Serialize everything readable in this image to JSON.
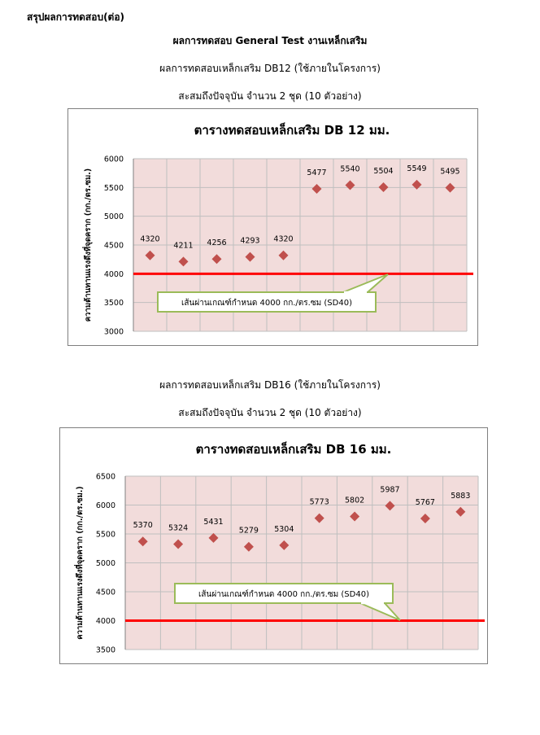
{
  "page": {
    "section_heading": "สรุปผลการทดสอบ(ต่อ)",
    "main_title": "ผลการทดสอบ General Test งานเหล็กเสริม",
    "db12_subtitle": "ผลการทดสอบเหล็กเสริม DB12 (ใช้ภายในโครงการ)",
    "db12_count": "สะสมถึงปัจจุบัน จำนวน 2 ชุด (10 ตัวอย่าง)",
    "db16_subtitle": "ผลการทดสอบเหล็กเสริม DB16 (ใช้ภายในโครงการ)",
    "db16_count": "สะสมถึงปัจจุบัน จำนวน 2 ชุด (10 ตัวอย่าง)"
  },
  "colors": {
    "plot_background": "#f2dcdb",
    "marker": "#c0504d",
    "threshold_line": "#ff0000",
    "callout_border": "#9bbb59",
    "grid": "#bfbfbf"
  },
  "chart_data": [
    {
      "type": "scatter",
      "title": "ตารางทดสอบเหล็กเสริม DB 12 มม.",
      "ylabel": "ความต้านทานแรงดึงที่จุดคราก (กก./ตร.ซม.)",
      "ylim": [
        3000,
        6000
      ],
      "yticks": [
        3000,
        3500,
        4000,
        4500,
        5000,
        5500,
        6000
      ],
      "x": [
        1,
        2,
        3,
        4,
        5,
        6,
        7,
        8,
        9,
        10
      ],
      "values": [
        4320,
        4211,
        4256,
        4293,
        4320,
        5477,
        5540,
        5504,
        5549,
        5495
      ],
      "data_labels": [
        "4320",
        "4211",
        "4256",
        "4293",
        "4320",
        "5477",
        "5540",
        "5504",
        "5549",
        "5495"
      ],
      "threshold": 4000,
      "threshold_label": "เส้นผ่านเกณฑ์กำหนด 4000 กก./ตร.ซม (SD40)",
      "grid": true,
      "legend": "none"
    },
    {
      "type": "scatter",
      "title": "ตารางทดสอบเหล็กเสริม DB 16 มม.",
      "ylabel": "ความต้านทานแรงดึงที่จุดคราก (กก./ตร.ซม.)",
      "ylim": [
        3500,
        6500
      ],
      "yticks": [
        3500,
        4000,
        4500,
        5000,
        5500,
        6000,
        6500
      ],
      "x": [
        1,
        2,
        3,
        4,
        5,
        6,
        7,
        8,
        9,
        10
      ],
      "values": [
        5370,
        5324,
        5431,
        5279,
        5304,
        5773,
        5802,
        5987,
        5767,
        5883
      ],
      "data_labels": [
        "5370",
        "5324",
        "5431",
        "5279",
        "5304",
        "5773",
        "5802",
        "5987",
        "5767",
        "5883"
      ],
      "threshold": 4000,
      "threshold_label": "เส้นผ่านเกณฑ์กำหนด 4000 กก./ตร.ซม (SD40)",
      "grid": true,
      "legend": "none"
    }
  ]
}
